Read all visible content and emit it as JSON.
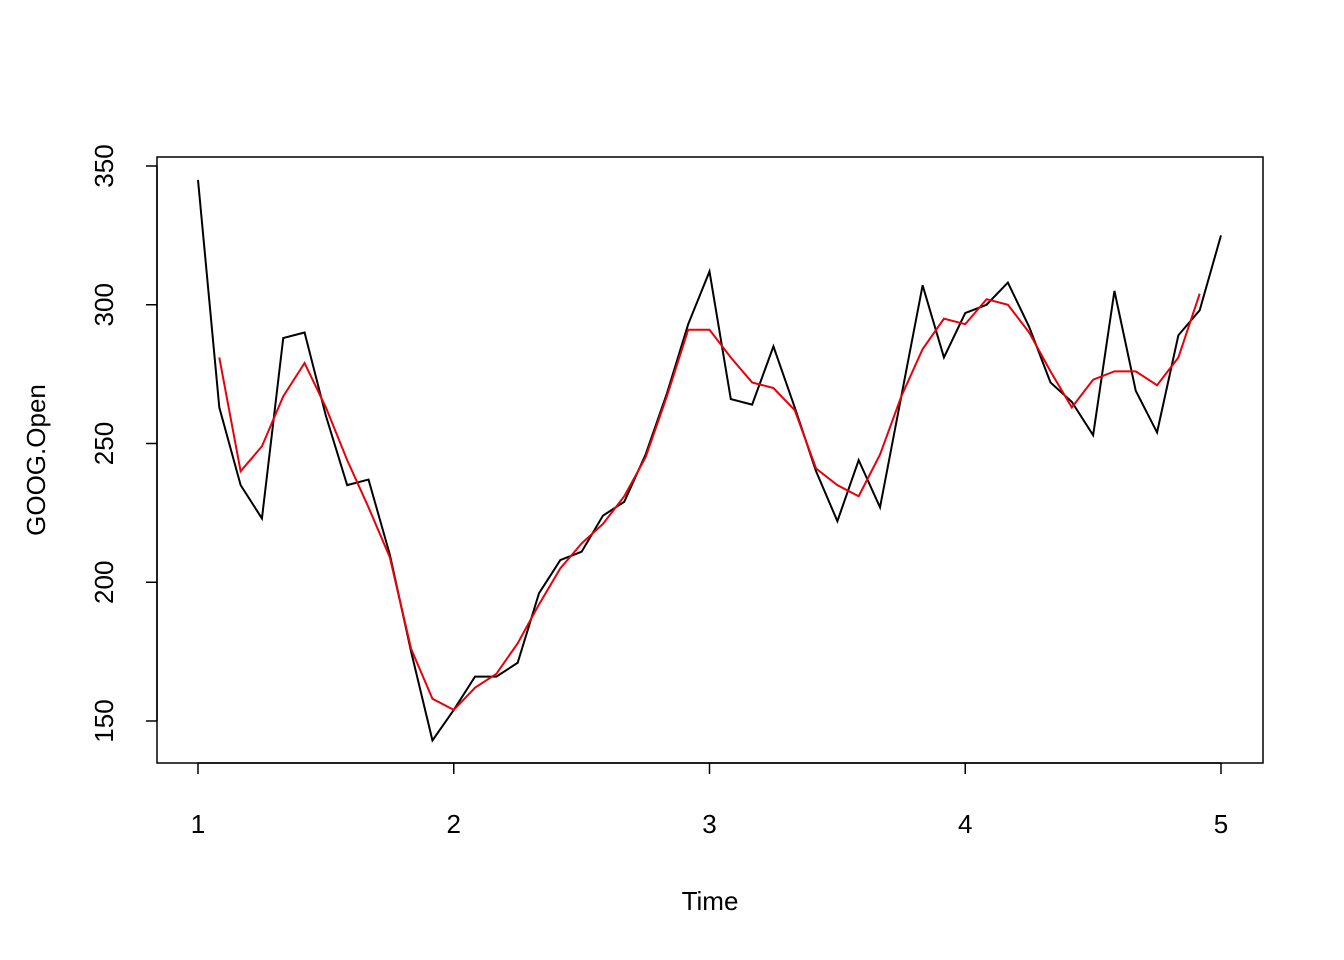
{
  "chart_data": {
    "type": "line",
    "title": "",
    "xlabel": "Time",
    "ylabel": "GOOG.Open",
    "xlim": [
      1,
      5
    ],
    "ylim": [
      135,
      353
    ],
    "xticks": [
      1,
      2,
      3,
      4,
      5
    ],
    "yticks": [
      150,
      200,
      250,
      300,
      350
    ],
    "series": [
      {
        "color": "#000000",
        "x": [
          1.0,
          1.0833,
          1.1667,
          1.25,
          1.3333,
          1.4167,
          1.5,
          1.5833,
          1.6667,
          1.75,
          1.8333,
          1.9167,
          2.0,
          2.0833,
          2.1667,
          2.25,
          2.3333,
          2.4167,
          2.5,
          2.5833,
          2.6667,
          2.75,
          2.8333,
          2.9167,
          3.0,
          3.0833,
          3.1667,
          3.25,
          3.3333,
          3.4167,
          3.5,
          3.5833,
          3.6667,
          3.75,
          3.8333,
          3.9167,
          4.0,
          4.0833,
          4.1667,
          4.25,
          4.3333,
          4.4167,
          4.5,
          4.5833,
          4.6667,
          4.75,
          4.8333,
          4.9167,
          5.0
        ],
        "values": [
          345,
          263,
          235,
          223,
          288,
          290,
          260,
          235,
          237,
          210,
          175,
          143,
          154,
          166,
          166,
          171,
          196,
          208,
          211,
          224,
          229,
          246,
          268,
          293,
          312,
          266,
          264,
          285,
          263,
          240,
          222,
          244,
          227,
          267,
          307,
          281,
          297,
          300,
          308,
          292,
          272,
          265,
          253,
          305,
          269,
          254,
          289,
          298,
          325
        ]
      },
      {
        "color": "#e8000b",
        "x": [
          1.0833,
          1.1667,
          1.25,
          1.3333,
          1.4167,
          1.5,
          1.5833,
          1.6667,
          1.75,
          1.8333,
          1.9167,
          2.0,
          2.0833,
          2.1667,
          2.25,
          2.3333,
          2.4167,
          2.5,
          2.5833,
          2.6667,
          2.75,
          2.8333,
          2.9167,
          3.0,
          3.0833,
          3.1667,
          3.25,
          3.3333,
          3.4167,
          3.5,
          3.5833,
          3.6667,
          3.75,
          3.8333,
          3.9167,
          4.0,
          4.0833,
          4.1667,
          4.25,
          4.3333,
          4.4167,
          4.5,
          4.5833,
          4.6667,
          4.75,
          4.8333,
          4.9167
        ],
        "values": [
          281,
          240,
          249,
          267,
          279,
          263,
          244,
          227,
          209,
          176,
          158,
          154,
          162,
          167,
          178,
          192,
          205,
          214,
          221,
          231,
          245,
          267,
          291,
          291,
          281,
          272,
          270,
          262,
          241,
          235,
          231,
          246,
          267,
          284,
          295,
          293,
          302,
          300,
          290,
          276,
          263,
          273,
          276,
          276,
          271,
          281,
          304
        ]
      }
    ]
  }
}
